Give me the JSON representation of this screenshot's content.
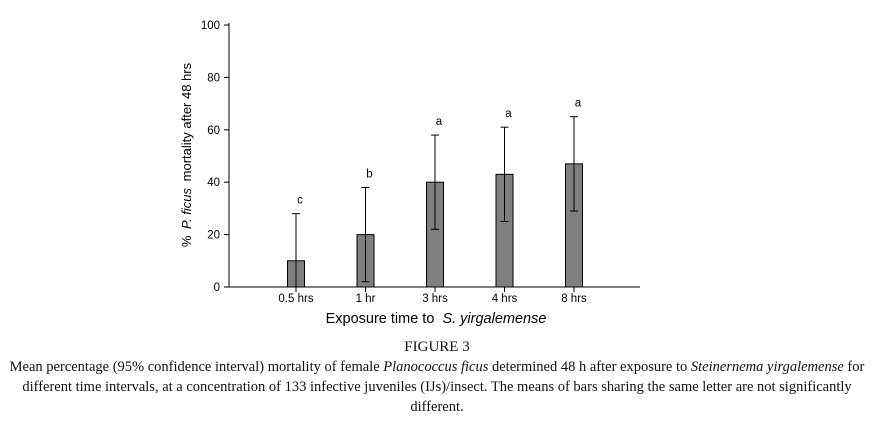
{
  "chart_data": {
    "type": "bar",
    "categories": [
      "0.5 hrs",
      "1 hr",
      "3 hrs",
      "4 hrs",
      "8 hrs"
    ],
    "values": [
      10,
      20,
      40,
      43,
      47
    ],
    "ci_lower": [
      0,
      2,
      22,
      25,
      29
    ],
    "ci_upper": [
      28,
      38,
      58,
      61,
      65
    ],
    "significance_letters": [
      "c",
      "b",
      "a",
      "a",
      "a"
    ],
    "ylim": [
      0,
      100
    ],
    "yticks": [
      0,
      20,
      40,
      60,
      80,
      100
    ],
    "xlabel": "Exposure time to",
    "xlabel_italic": "S. yirgalemense",
    "ylabel_prefix": "%",
    "ylabel_italic": "P. ficus",
    "ylabel_suffix": "mortality after 48 hrs",
    "bar_color": "#7f7f7f",
    "grid": false
  },
  "caption": {
    "figure_label": "FIGURE 3",
    "part1": "Mean percentage (95% confidence interval) mortality of female",
    "species1": "Planococcus ficus",
    "part2": "determined 48 h after exposure to",
    "species2": "Steinernema yirgalemense",
    "part3": "for different time intervals, at a concentration of 133 infective juveniles (IJs)/insect. The means of bars sharing the same letter are not significantly different."
  }
}
